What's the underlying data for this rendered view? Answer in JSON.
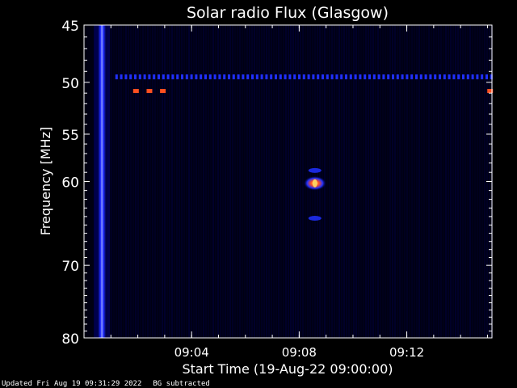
{
  "chart_data": {
    "type": "heatmap",
    "title": "Solar radio Flux (Glasgow)",
    "xlabel": "Start Time (19-Aug-22 09:00:00)",
    "ylabel": "Frequency [MHz]",
    "y_scale": "log",
    "ylim": [
      45,
      80
    ],
    "y_ticks": [
      45,
      50,
      55,
      60,
      70,
      80
    ],
    "x_range": [
      "09:00:00",
      "09:15:10"
    ],
    "x_ticks": [
      "09:04",
      "09:08",
      "09:12"
    ],
    "grid": false,
    "colors": {
      "background": "#000010",
      "low": "#00007a",
      "mid": "#2030ff",
      "high": "#ff5020",
      "peak": "#ffd060",
      "frame": "#ffffff"
    },
    "features": [
      {
        "kind": "broadband-stripe",
        "time": "09:00:40",
        "freq_range": [
          45,
          80
        ],
        "level": "high"
      },
      {
        "kind": "interference-line",
        "freq": 49.5,
        "time_range": [
          "09:01:10",
          "09:15:10"
        ],
        "level": "mid"
      },
      {
        "kind": "interference-dots",
        "freq": 50.8,
        "times": [
          "09:01:55",
          "09:02:25",
          "09:02:55",
          "09:15:05"
        ],
        "level": "high"
      },
      {
        "kind": "burst",
        "time": "09:08:35",
        "freq": 60.2,
        "level": "peak"
      },
      {
        "kind": "burst",
        "time": "09:08:35",
        "freq": 58.8,
        "level": "mid"
      },
      {
        "kind": "burst",
        "time": "09:08:35",
        "freq": 64.2,
        "level": "mid"
      }
    ]
  },
  "footer": {
    "updated": "Updated Fri Aug 19 09:31:29 2022",
    "note": "BG subtracted"
  }
}
